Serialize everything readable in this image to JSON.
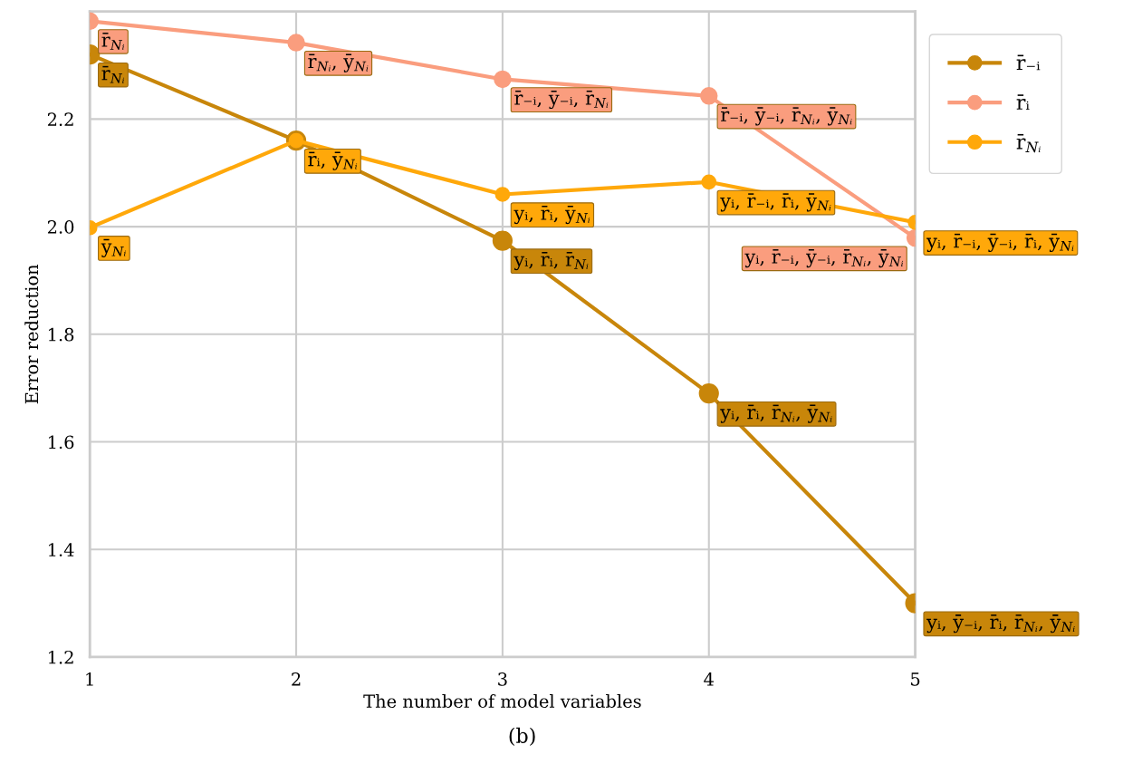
{
  "chart_data": {
    "type": "line",
    "xlabel": "The number of model variables",
    "ylabel": "Error reduction",
    "x": [
      1,
      2,
      3,
      4,
      5
    ],
    "series": [
      {
        "name": "r̄₋ᵢ",
        "color": "#c8860a",
        "values": [
          2.32,
          2.16,
          1.974,
          1.69,
          1.3
        ]
      },
      {
        "name": "r̄ᵢ",
        "color": "#fa9d7e",
        "values": [
          2.382,
          2.342,
          2.274,
          2.243,
          1.979
        ]
      },
      {
        "name": "r̄$_{Nᵢ}$",
        "color": "#ffa80a",
        "values": [
          1.998,
          2.16,
          2.06,
          2.083,
          2.008
        ]
      }
    ],
    "xlim": [
      1,
      5
    ],
    "ylim": [
      1.2,
      2.4
    ],
    "xticks": [
      1,
      2,
      3,
      4,
      5
    ],
    "yticks": [
      1.2,
      1.4,
      1.6,
      1.8,
      {
        "value": 2.0,
        "label": "2.0"
      },
      2.2
    ],
    "grid": true,
    "legend": "top right",
    "marker": "circle",
    "line_style": "solid",
    "annotations": [
      {
        "text": "r̄$_{Nᵢ}$",
        "x": 1,
        "y": 2.32
      },
      {
        "text": "yᵢ, r̄ᵢ, r̄$_{Nᵢ}$",
        "x": 3,
        "y": 1.974
      },
      {
        "text": "yᵢ, r̄ᵢ, r̄$_{Nᵢ}$, ȳ$_{Nᵢ}$",
        "x": 4,
        "y": 1.69
      },
      {
        "text": "yᵢ, ȳ₋ᵢ, r̄ᵢ, r̄$_{Nᵢ}$, ȳ$_{Nᵢ}$",
        "x": 5,
        "y": 1.3
      },
      {
        "text": "ȳ$_{Nᵢ}$",
        "x": 1,
        "y": 1.998
      },
      {
        "text": "r̄ᵢ, ȳ$_{Nᵢ}$",
        "x": 2,
        "y": 2.16
      },
      {
        "text": "yᵢ, r̄ᵢ, ȳ$_{Nᵢ}$",
        "x": 3,
        "y": 2.06
      },
      {
        "text": "yᵢ, r̄₋ᵢ, r̄ᵢ, ȳ$_{Nᵢ}$",
        "x": 4,
        "y": 2.083
      },
      {
        "text": "yᵢ, r̄₋ᵢ, ȳ₋ᵢ, r̄ᵢ, ȳ$_{Nᵢ}$",
        "x": 5,
        "y": 2.008
      },
      {
        "text": "r̄$_{Nᵢ}$",
        "x": 1,
        "y": 2.382
      },
      {
        "text": "r̄$_{Nᵢ}$, ȳ$_{Nᵢ}$",
        "x": 2,
        "y": 2.342
      },
      {
        "text": "r̄₋ᵢ, ȳ₋ᵢ, r̄$_{Nᵢ}$",
        "x": 3,
        "y": 2.274
      },
      {
        "text": "r̄₋ᵢ, ȳ₋ᵢ, r̄$_{Nᵢ}$, ȳ$_{Nᵢ}$",
        "x": 4,
        "y": 2.243
      },
      {
        "text": "yᵢ, r̄₋ᵢ, ȳ₋ᵢ, r̄$_{Nᵢ}$, ȳ$_{Nᵢ}$",
        "x": 5,
        "y": 1.979
      },
      "(b)"
    ]
  }
}
